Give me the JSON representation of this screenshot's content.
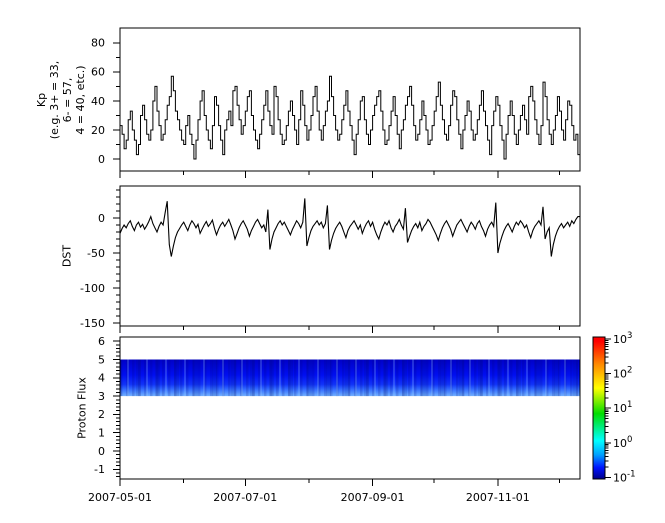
{
  "figure": {
    "background": "#ffffff",
    "axis_color": "#000000",
    "x_axis": {
      "tick_labels": [
        "2007-05-01",
        "2007-07-01",
        "2007-09-01",
        "2007-11-01"
      ],
      "tick_day_offsets": [
        0,
        61,
        123,
        184
      ],
      "minor_day_offsets": [
        31,
        92,
        153,
        214
      ],
      "total_days": 224,
      "start_date": "2007-05-01"
    }
  },
  "chart_data": [
    {
      "type": "line",
      "step": true,
      "series_name": "Kp",
      "ylabel_lines": [
        "Kp",
        "(e.g. 3+ = 33,",
        "6- = 57,",
        "4 = 40, etc.)"
      ],
      "line_color": "#000000",
      "ylim": [
        -8.3,
        90.3
      ],
      "yticks": [
        80,
        60,
        40,
        20,
        0
      ],
      "y_minor_step": 10,
      "x_start": "2007-05-01",
      "x_step_days": 1,
      "values": [
        23,
        17,
        7,
        13,
        27,
        33,
        20,
        13,
        3,
        10,
        30,
        37,
        27,
        17,
        13,
        20,
        40,
        50,
        33,
        23,
        13,
        17,
        27,
        37,
        43,
        57,
        47,
        33,
        27,
        20,
        13,
        10,
        23,
        30,
        17,
        10,
        0,
        13,
        27,
        40,
        47,
        30,
        20,
        13,
        7,
        23,
        43,
        37,
        23,
        13,
        3,
        20,
        27,
        33,
        23,
        47,
        50,
        37,
        27,
        17,
        23,
        33,
        43,
        47,
        30,
        20,
        13,
        7,
        17,
        27,
        37,
        47,
        33,
        23,
        17,
        50,
        43,
        27,
        17,
        10,
        13,
        23,
        33,
        40,
        30,
        20,
        10,
        27,
        47,
        37,
        23,
        13,
        20,
        30,
        43,
        50,
        33,
        20,
        13,
        23,
        33,
        40,
        57,
        43,
        30,
        20,
        13,
        17,
        27,
        37,
        47,
        33,
        23,
        13,
        3,
        17,
        27,
        40,
        43,
        27,
        17,
        10,
        20,
        30,
        37,
        43,
        47,
        33,
        20,
        10,
        13,
        23,
        33,
        43,
        30,
        17,
        7,
        20,
        27,
        37,
        43,
        50,
        37,
        23,
        13,
        17,
        27,
        40,
        30,
        20,
        10,
        13,
        23,
        33,
        43,
        53,
        37,
        27,
        17,
        13,
        23,
        37,
        47,
        43,
        27,
        17,
        7,
        20,
        30,
        40,
        33,
        20,
        13,
        17,
        27,
        37,
        47,
        33,
        23,
        13,
        3,
        23,
        33,
        43,
        37,
        23,
        13,
        0,
        17,
        30,
        40,
        30,
        17,
        10,
        20,
        30,
        37,
        27,
        17,
        43,
        50,
        40,
        27,
        17,
        10,
        23,
        53,
        43,
        27,
        17,
        10,
        20,
        30,
        43,
        33,
        20,
        13,
        27,
        40,
        37,
        23,
        13,
        17,
        3
      ]
    },
    {
      "type": "line",
      "step": false,
      "series_name": "DST",
      "ylabel": "DST",
      "line_color": "#000000",
      "ylim": [
        -154.3,
        45.7
      ],
      "yticks": [
        0,
        -50,
        -100,
        -150
      ],
      "y_minor_step": 10,
      "x_start": "2007-05-01",
      "x_step_days": 1,
      "values": [
        -22,
        -15,
        -10,
        -14,
        -8,
        -4,
        -12,
        -18,
        -10,
        -6,
        -13,
        -9,
        -16,
        -11,
        -5,
        2,
        -8,
        -14,
        -20,
        -12,
        -6,
        -10,
        8,
        24,
        -38,
        -55,
        -40,
        -28,
        -20,
        -15,
        -10,
        -6,
        -12,
        -18,
        -10,
        -4,
        -8,
        -14,
        -9,
        -22,
        -16,
        -10,
        -5,
        -12,
        -8,
        -3,
        -15,
        -24,
        -16,
        -10,
        -6,
        -12,
        -7,
        -2,
        -10,
        -18,
        -30,
        -22,
        -14,
        -8,
        -4,
        -10,
        -16,
        -26,
        -18,
        -12,
        -6,
        -2,
        -8,
        -14,
        -10,
        -20,
        12,
        -45,
        -30,
        -20,
        -14,
        -8,
        -4,
        -10,
        -6,
        -12,
        -18,
        -24,
        -16,
        -10,
        -4,
        -8,
        -14,
        -6,
        28,
        -40,
        -28,
        -18,
        -12,
        -8,
        -4,
        -10,
        -6,
        -14,
        -8,
        18,
        -45,
        -32,
        -22,
        -15,
        -10,
        -6,
        -12,
        -20,
        -28,
        -18,
        -12,
        -8,
        -4,
        -10,
        -16,
        -10,
        -22,
        -14,
        -8,
        -4,
        -12,
        -6,
        -16,
        -24,
        -30,
        -20,
        -12,
        -6,
        -10,
        -4,
        -14,
        -20,
        -12,
        -8,
        -2,
        -10,
        -16,
        14,
        -35,
        -26,
        -18,
        -12,
        -8,
        -14,
        -6,
        -18,
        -12,
        -8,
        -2,
        -6,
        -12,
        -18,
        -24,
        -32,
        -22,
        -14,
        -8,
        -4,
        -10,
        -16,
        -26,
        -18,
        -10,
        -6,
        -2,
        -8,
        -14,
        -20,
        -12,
        -6,
        -10,
        -16,
        -8,
        -4,
        -12,
        -18,
        -26,
        -16,
        -10,
        -6,
        -12,
        22,
        -50,
        -36,
        -26,
        -18,
        -12,
        -8,
        -14,
        -20,
        -12,
        -6,
        -10,
        -4,
        -8,
        -14,
        -10,
        -20,
        -28,
        -18,
        -12,
        -8,
        -4,
        -10,
        16,
        -30,
        -20,
        -14,
        -55,
        -38,
        -26,
        -18,
        -12,
        -8,
        -14,
        -10,
        -6,
        -12,
        -4,
        -8,
        -2,
        2
      ]
    },
    {
      "type": "heatmap",
      "series_name": "Proton Flux",
      "ylabel": "Proton Flux",
      "ylim": [
        -1.53,
        6.23
      ],
      "yticks": [
        6,
        5,
        4,
        3,
        2,
        1,
        0,
        -1
      ],
      "y_minor_step": 0.2,
      "band": {
        "y_top": 5,
        "y_bottom": 3,
        "x_full_range": true,
        "colors_top_to_bottom": [
          "#0000c8",
          "#000ef0",
          "#1133f8",
          "#2f66ff",
          "#4f8cff",
          "#74b2ff"
        ],
        "color_offsets": [
          0,
          0.42,
          0.68,
          0.8,
          0.9,
          1
        ]
      },
      "colorbar": {
        "scale": "log10",
        "tick_labels": [
          "10^3",
          "10^2",
          "10^1",
          "10^0",
          "10^-1"
        ],
        "tick_exponents": [
          3,
          2,
          1,
          0,
          -1
        ],
        "value_range": [
          0.1,
          1000
        ],
        "gradient_bottom_to_top": [
          "#000089",
          "#0013ff",
          "#00a0ff",
          "#00ffff",
          "#00dd00",
          "#ffff00",
          "#ff8800",
          "#ff0000"
        ],
        "gradient_offsets": [
          0,
          0.08,
          0.17,
          0.27,
          0.46,
          0.64,
          0.81,
          0.97
        ]
      }
    }
  ]
}
